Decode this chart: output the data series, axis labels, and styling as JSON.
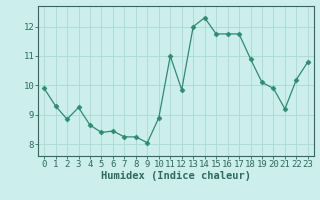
{
  "x": [
    0,
    1,
    2,
    3,
    4,
    5,
    6,
    7,
    8,
    9,
    10,
    11,
    12,
    13,
    14,
    15,
    16,
    17,
    18,
    19,
    20,
    21,
    22,
    23
  ],
  "y": [
    9.9,
    9.3,
    8.85,
    9.25,
    8.65,
    8.4,
    8.45,
    8.25,
    8.25,
    8.05,
    8.9,
    11.0,
    9.85,
    12.0,
    12.3,
    11.75,
    11.75,
    11.75,
    10.9,
    10.1,
    9.9,
    9.2,
    10.2,
    10.8
  ],
  "line_color": "#2e8b74",
  "marker": "D",
  "marker_size": 2.5,
  "bg_color": "#cceeed",
  "grid_color": "#aad8d4",
  "axis_color": "#2e6b5e",
  "xlabel": "Humidex (Indice chaleur)",
  "ylim": [
    7.6,
    12.7
  ],
  "yticks": [
    8,
    9,
    10,
    11,
    12
  ],
  "xticks": [
    0,
    1,
    2,
    3,
    4,
    5,
    6,
    7,
    8,
    9,
    10,
    11,
    12,
    13,
    14,
    15,
    16,
    17,
    18,
    19,
    20,
    21,
    22,
    23
  ],
  "xlabel_fontsize": 7.5,
  "tick_fontsize": 6.5
}
